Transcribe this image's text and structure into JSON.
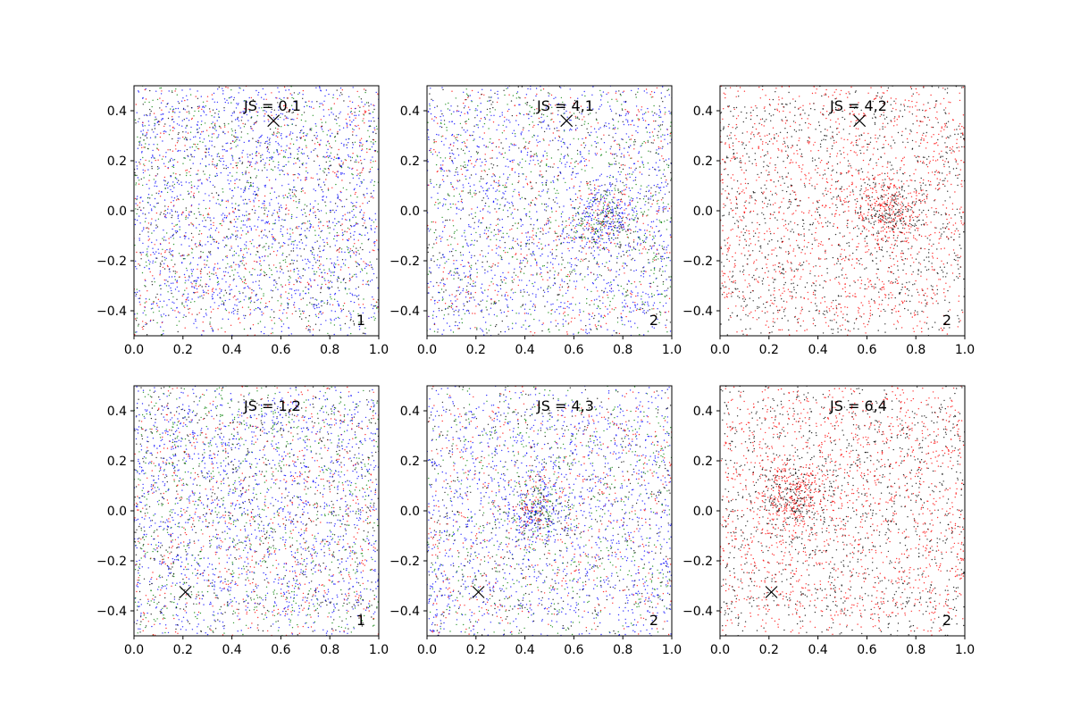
{
  "chart_data": [
    {
      "type": "scatter",
      "title": "JS = 0,1",
      "corner_label": "1",
      "xlim": [
        0.0,
        1.0
      ],
      "ylim": [
        -0.5,
        0.5
      ],
      "xticks": [
        "0.0",
        "0.2",
        "0.4",
        "0.6",
        "0.8",
        "1.0"
      ],
      "yticks": [
        "0.4",
        "0.2",
        "0.0",
        "−0.2",
        "−0.4"
      ],
      "marker": {
        "symbol": "x",
        "x": 0.57,
        "y": 0.36
      },
      "series_colors": [
        "#0000ff",
        "#008000",
        "#ff0000",
        "#000000"
      ],
      "series_weights": [
        0.45,
        0.2,
        0.18,
        0.17
      ],
      "approx_point_count": 3500
    },
    {
      "type": "scatter",
      "title": "JS = 4,1",
      "corner_label": "2",
      "xlim": [
        0.0,
        1.0
      ],
      "ylim": [
        -0.5,
        0.5
      ],
      "xticks": [
        "0.0",
        "0.2",
        "0.4",
        "0.6",
        "0.8",
        "1.0"
      ],
      "yticks": [
        "0.4",
        "0.2",
        "0.0",
        "−0.2",
        "−0.4"
      ],
      "marker": {
        "symbol": "x",
        "x": 0.57,
        "y": 0.36
      },
      "series_colors": [
        "#0000ff",
        "#008000",
        "#ff0000",
        "#000000"
      ],
      "series_weights": [
        0.45,
        0.2,
        0.18,
        0.17
      ],
      "cluster": {
        "x": 0.72,
        "y": -0.03
      },
      "approx_point_count": 3500
    },
    {
      "type": "scatter",
      "title": "JS = 4,2",
      "corner_label": "2",
      "xlim": [
        0.0,
        1.0
      ],
      "ylim": [
        -0.5,
        0.5
      ],
      "xticks": [
        "0.0",
        "0.2",
        "0.4",
        "0.6",
        "0.8",
        "1.0"
      ],
      "yticks": [
        "0.4",
        "0.2",
        "0.0",
        "−0.2",
        "−0.4"
      ],
      "marker": {
        "symbol": "x",
        "x": 0.57,
        "y": 0.36
      },
      "series_colors": [
        "#ff0000",
        "#000000"
      ],
      "series_weights": [
        0.55,
        0.45
      ],
      "cluster": {
        "x": 0.7,
        "y": 0.0
      },
      "approx_point_count": 3000
    },
    {
      "type": "scatter",
      "title": "JS = 1,2",
      "corner_label": "1",
      "xlim": [
        0.0,
        1.0
      ],
      "ylim": [
        -0.5,
        0.5
      ],
      "xticks": [
        "0.0",
        "0.2",
        "0.4",
        "0.6",
        "0.8",
        "1.0"
      ],
      "yticks": [
        "0.4",
        "0.2",
        "0.0",
        "−0.2",
        "−0.4"
      ],
      "marker": {
        "symbol": "x",
        "x": 0.21,
        "y": -0.325
      },
      "series_colors": [
        "#0000ff",
        "#008000",
        "#ff0000",
        "#000000"
      ],
      "series_weights": [
        0.42,
        0.22,
        0.18,
        0.18
      ],
      "approx_point_count": 3800
    },
    {
      "type": "scatter",
      "title": "JS = 4,3",
      "corner_label": "2",
      "xlim": [
        0.0,
        1.0
      ],
      "ylim": [
        -0.5,
        0.5
      ],
      "xticks": [
        "0.0",
        "0.2",
        "0.4",
        "0.6",
        "0.8",
        "1.0"
      ],
      "yticks": [
        "0.4",
        "0.2",
        "0.0",
        "−0.2",
        "−0.4"
      ],
      "marker": {
        "symbol": "x",
        "x": 0.21,
        "y": -0.325
      },
      "series_colors": [
        "#0000ff",
        "#008000",
        "#ff0000",
        "#000000"
      ],
      "series_weights": [
        0.45,
        0.2,
        0.18,
        0.17
      ],
      "cluster": {
        "x": 0.45,
        "y": 0.0
      },
      "approx_point_count": 3500
    },
    {
      "type": "scatter",
      "title": "JS = 6,4",
      "corner_label": "2",
      "xlim": [
        0.0,
        1.0
      ],
      "ylim": [
        -0.5,
        0.5
      ],
      "xticks": [
        "0.0",
        "0.2",
        "0.4",
        "0.6",
        "0.8",
        "1.0"
      ],
      "yticks": [
        "0.4",
        "0.2",
        "0.0",
        "−0.2",
        "−0.4"
      ],
      "marker": {
        "symbol": "x",
        "x": 0.21,
        "y": -0.325
      },
      "series_colors": [
        "#ff0000",
        "#000000"
      ],
      "series_weights": [
        0.55,
        0.45
      ],
      "cluster": {
        "x": 0.3,
        "y": 0.05
      },
      "approx_point_count": 3200
    }
  ]
}
